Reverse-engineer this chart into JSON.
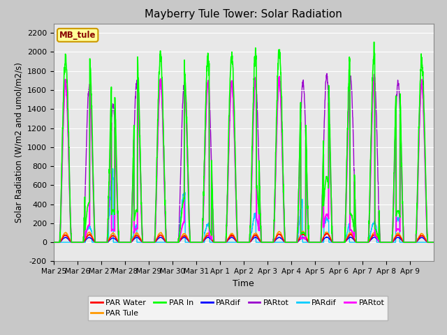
{
  "title": "Mayberry Tule Tower: Solar Radiation",
  "ylabel": "Solar Radiation (W/m2 and umol/m2/s)",
  "xlabel": "Time",
  "ylim": [
    -200,
    2300
  ],
  "yticks": [
    -200,
    0,
    200,
    400,
    600,
    800,
    1000,
    1200,
    1400,
    1600,
    1800,
    2000,
    2200
  ],
  "fig_bg_color": "#c8c8c8",
  "plot_bg_color": "#e8e8e8",
  "grid_color": "white",
  "n_days": 16,
  "day_labels": [
    "Mar 25",
    "Mar 26",
    "Mar 27",
    "Mar 28",
    "Mar 29",
    "Mar 30",
    "Mar 31",
    "Apr 1",
    "Apr 2",
    "Apr 3",
    "Apr 4",
    "Apr 5",
    "Apr 6",
    "Apr 7",
    "Apr 8",
    "Apr 9"
  ],
  "series": {
    "PAR Water": {
      "color": "#ff0000",
      "lw": 1.0
    },
    "PAR Tule": {
      "color": "#ff9900",
      "lw": 1.0
    },
    "PAR In": {
      "color": "#00ff00",
      "lw": 1.2
    },
    "PARdif": {
      "color": "#0000ff",
      "lw": 1.0
    },
    "PARtot": {
      "color": "#9900cc",
      "lw": 1.0
    },
    "PARdif2": {
      "color": "#00ccff",
      "lw": 1.0
    },
    "PARtot2": {
      "color": "#ff00ff",
      "lw": 1.5
    }
  },
  "legend_label": "MB_tule",
  "legend_bg": "#ffff99",
  "legend_border": "#cc9900",
  "peaks_PAR_in": [
    1940,
    1950,
    1840,
    1960,
    1970,
    1800,
    1960,
    1960,
    1970,
    2000,
    2000,
    2060,
    2020,
    2000,
    2000,
    1900
  ],
  "peaks_magenta": [
    1690,
    1650,
    1460,
    1700,
    1710,
    1680,
    1700,
    1680,
    1700,
    1710,
    1700,
    1780,
    1750,
    1740,
    1700,
    1680
  ],
  "peaks_orange": [
    100,
    105,
    95,
    95,
    100,
    90,
    95,
    90,
    95,
    110,
    110,
    105,
    100,
    100,
    95,
    90
  ],
  "peaks_red": [
    75,
    80,
    70,
    72,
    75,
    68,
    72,
    72,
    75,
    85,
    85,
    90,
    80,
    78,
    75,
    70
  ],
  "peaks_cyan": [
    0,
    160,
    730,
    170,
    0,
    520,
    180,
    0,
    300,
    0,
    450,
    250,
    200,
    210,
    260,
    0
  ],
  "partly_cloudy": [
    1,
    2,
    3,
    5,
    6,
    8,
    10,
    11,
    12,
    13,
    14
  ]
}
